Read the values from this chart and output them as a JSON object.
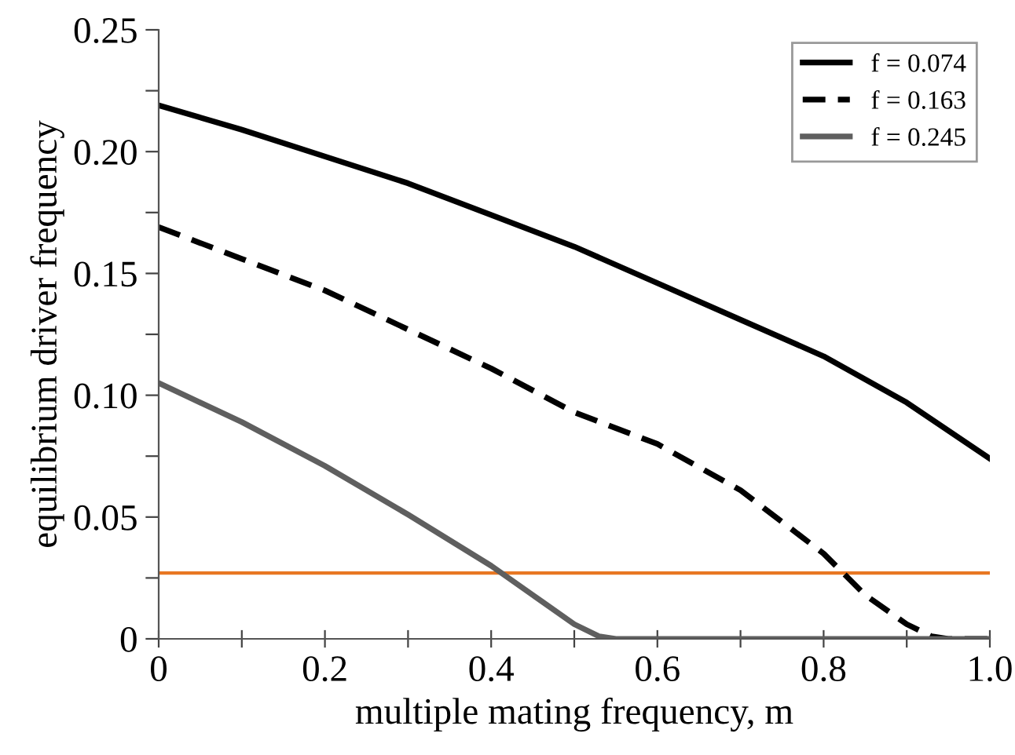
{
  "chart_data": {
    "type": "line",
    "xlabel": "multiple mating frequency, m",
    "ylabel": "equilibrium driver frequency",
    "xlim": [
      0,
      1.0
    ],
    "ylim": [
      0,
      0.25
    ],
    "xticks": [
      0,
      {
        "value": 0.1,
        "label": null
      },
      0.2,
      {
        "value": 0.3,
        "label": null
      },
      0.4,
      {
        "value": 0.5,
        "label": null
      },
      0.6,
      {
        "value": 0.7,
        "label": null
      },
      0.8,
      {
        "value": 0.9,
        "label": null
      },
      {
        "value": 1.0,
        "label": "1.0"
      }
    ],
    "yticks": [
      0,
      {
        "value": 0.025,
        "label": null
      },
      0.05,
      {
        "value": 0.075,
        "label": null
      },
      {
        "value": 0.1,
        "label": "0.10"
      },
      {
        "value": 0.125,
        "label": null
      },
      0.15,
      {
        "value": 0.175,
        "label": null
      },
      {
        "value": 0.2,
        "label": "0.20"
      },
      {
        "value": 0.225,
        "label": null
      },
      0.25
    ],
    "legend": "top right",
    "grid": false,
    "marker": "none",
    "series": [
      {
        "name": "f = 0.074",
        "color": "#000000",
        "line_style": "solid",
        "x": [
          0,
          0.1,
          0.2,
          0.3,
          0.4,
          0.5,
          0.6,
          0.7,
          0.8,
          0.9,
          1.0
        ],
        "values": [
          0.219,
          0.209,
          0.198,
          0.187,
          0.174,
          0.161,
          0.146,
          0.131,
          0.116,
          0.097,
          0.074
        ]
      },
      {
        "name": "f = 0.163",
        "color": "#000000",
        "line_style": "dashed",
        "x": [
          0,
          0.1,
          0.2,
          0.3,
          0.4,
          0.5,
          0.6,
          0.7,
          0.8,
          0.85,
          0.9,
          0.93,
          0.95,
          1.0
        ],
        "values": [
          0.169,
          0.156,
          0.143,
          0.127,
          0.111,
          0.093,
          0.08,
          0.061,
          0.035,
          0.018,
          0.006,
          0.001,
          0,
          0
        ]
      },
      {
        "name": "f = 0.245",
        "color": "#5f5f5f",
        "line_style": "solid",
        "x": [
          0,
          0.1,
          0.2,
          0.3,
          0.4,
          0.45,
          0.5,
          0.53,
          0.55,
          1.0
        ],
        "values": [
          0.105,
          0.089,
          0.071,
          0.051,
          0.03,
          0.018,
          0.006,
          0.001,
          0,
          0
        ]
      }
    ],
    "ref_lines": [
      {
        "axis": "y",
        "value": 0.027,
        "color": "#e87722",
        "line_style": "solid"
      }
    ]
  }
}
